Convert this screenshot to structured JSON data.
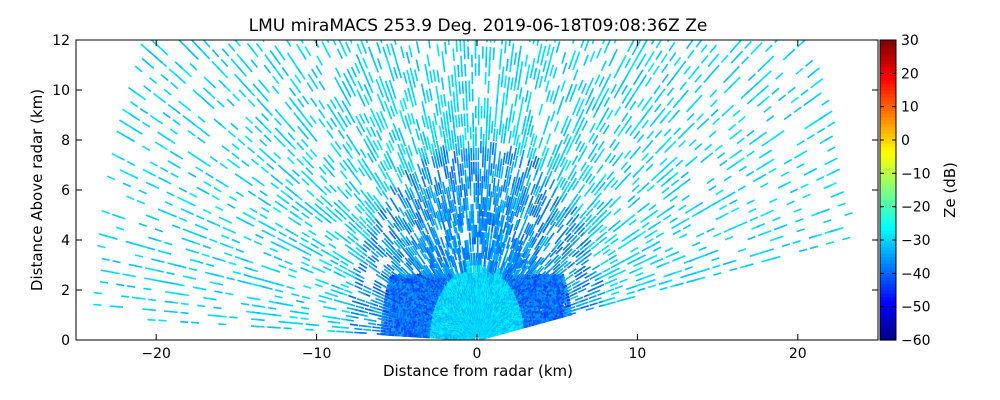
{
  "chart_data": {
    "type": "heatmap",
    "title": "LMU miraMACS 253.9 Deg. 2019-06-18T09:08:36Z  Ze",
    "xlabel": "Distance from radar (km)",
    "ylabel": "Distance Above radar  (km)",
    "xlim": [
      -25,
      25
    ],
    "ylim": [
      0,
      12
    ],
    "xticks": [
      -20,
      -10,
      0,
      10,
      20
    ],
    "yticks": [
      0,
      2,
      4,
      6,
      8,
      10,
      12
    ],
    "colorbar": {
      "label": "Ze (dB)",
      "range": [
        -60,
        30
      ],
      "ticks": [
        -60,
        -50,
        -40,
        -30,
        -20,
        -10,
        0,
        10,
        20,
        30
      ],
      "colormap": "jet"
    },
    "scan": {
      "type": "RHI",
      "max_range_km": 24,
      "elevation_deg_min": 10,
      "elevation_deg_max": 180
    },
    "grid": false
  },
  "colors": {
    "background": "#ffffff",
    "axis": "#000000",
    "far_echo": "#00dcd8",
    "near_echo": "#0064ff"
  }
}
